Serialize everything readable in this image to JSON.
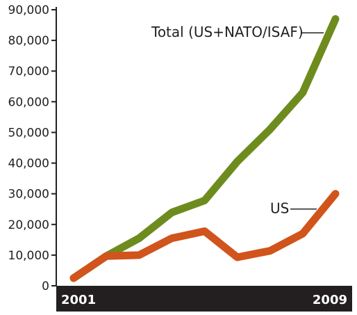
{
  "chart_data": {
    "type": "line",
    "title": "",
    "xlabel": "",
    "ylabel": "",
    "x": [
      2001,
      2002,
      2003,
      2004,
      2005,
      2006,
      2007,
      2008,
      2009
    ],
    "xtick_labels": [
      "2001",
      "2009"
    ],
    "ylim": [
      0,
      90000
    ],
    "yticks": [
      0,
      10000,
      20000,
      30000,
      40000,
      50000,
      60000,
      70000,
      80000,
      90000
    ],
    "ytick_labels": [
      "0",
      "10,000",
      "20,000",
      "30,000",
      "40,000",
      "50,000",
      "60,000",
      "70,000",
      "80,000",
      "90,000"
    ],
    "grid": false,
    "legend": "none",
    "series": [
      {
        "name": "Total (US+NATO/ISAF)",
        "color": "#6e8c1e",
        "values": [
          2500,
          9700,
          15500,
          23900,
          27800,
          40500,
          51000,
          63000,
          87000
        ]
      },
      {
        "name": "US",
        "color": "#d0541c",
        "values": [
          2500,
          9700,
          10000,
          15500,
          17800,
          9300,
          11400,
          17000,
          30000
        ]
      }
    ],
    "colors": {
      "axis_bar": "#231f20",
      "axis_line": "#231f20",
      "text": "#231f20"
    }
  }
}
